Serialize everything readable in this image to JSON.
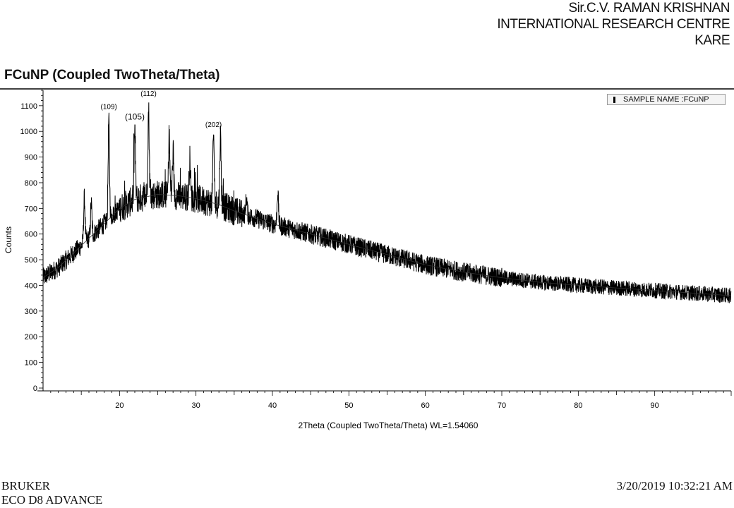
{
  "header": {
    "line1": "Sir.C.V. RAMAN KRISHNAN",
    "line2": "INTERNATIONAL RESEARCH CENTRE",
    "line3": "KARE"
  },
  "legend": {
    "label": "SAMPLE NAME :FCuNP"
  },
  "footer": {
    "maker": "BRUKER",
    "model": "ECO D8 ADVANCE",
    "timestamp": "3/20/2019 10:32:21 AM"
  },
  "chart_data": {
    "type": "line",
    "title": "FCuNP (Coupled TwoTheta/Theta)",
    "xlabel": "2Theta (Coupled TwoTheta/Theta) WL=1.54060",
    "ylabel": "Counts",
    "xlim": [
      10,
      100
    ],
    "ylim": [
      0,
      1160
    ],
    "xticks": [
      20,
      30,
      40,
      50,
      60,
      70,
      80,
      90
    ],
    "yticks": [
      0,
      100,
      200,
      300,
      400,
      500,
      600,
      700,
      800,
      900,
      1000,
      1100
    ],
    "legend_position": "top-right",
    "color": "#000000",
    "background_fit": {
      "x": [
        10,
        12,
        15,
        18,
        20,
        22,
        25,
        28,
        30,
        33,
        35,
        40,
        45,
        50,
        55,
        60,
        65,
        70,
        75,
        80,
        85,
        90,
        95,
        100
      ],
      "y": [
        430,
        470,
        555,
        640,
        700,
        735,
        755,
        748,
        738,
        715,
        690,
        640,
        600,
        560,
        520,
        480,
        452,
        430,
        412,
        400,
        390,
        380,
        370,
        360
      ]
    },
    "noise_amplitude": 38,
    "peaks": [
      {
        "x": 15.4,
        "y": 760,
        "label": ""
      },
      {
        "x": 16.3,
        "y": 740,
        "label": ""
      },
      {
        "x": 18.6,
        "y": 1070,
        "label": "(109)"
      },
      {
        "x": 22.0,
        "y": 1030,
        "label": "(105)"
      },
      {
        "x": 23.8,
        "y": 1100,
        "label": "(112)"
      },
      {
        "x": 26.5,
        "y": 990,
        "label": ""
      },
      {
        "x": 27.0,
        "y": 920,
        "label": ""
      },
      {
        "x": 29.2,
        "y": 910,
        "label": ""
      },
      {
        "x": 32.3,
        "y": 1000,
        "label": "(202)"
      },
      {
        "x": 33.2,
        "y": 1000,
        "label": ""
      },
      {
        "x": 36.6,
        "y": 760,
        "label": ""
      },
      {
        "x": 40.7,
        "y": 785,
        "label": ""
      }
    ]
  }
}
